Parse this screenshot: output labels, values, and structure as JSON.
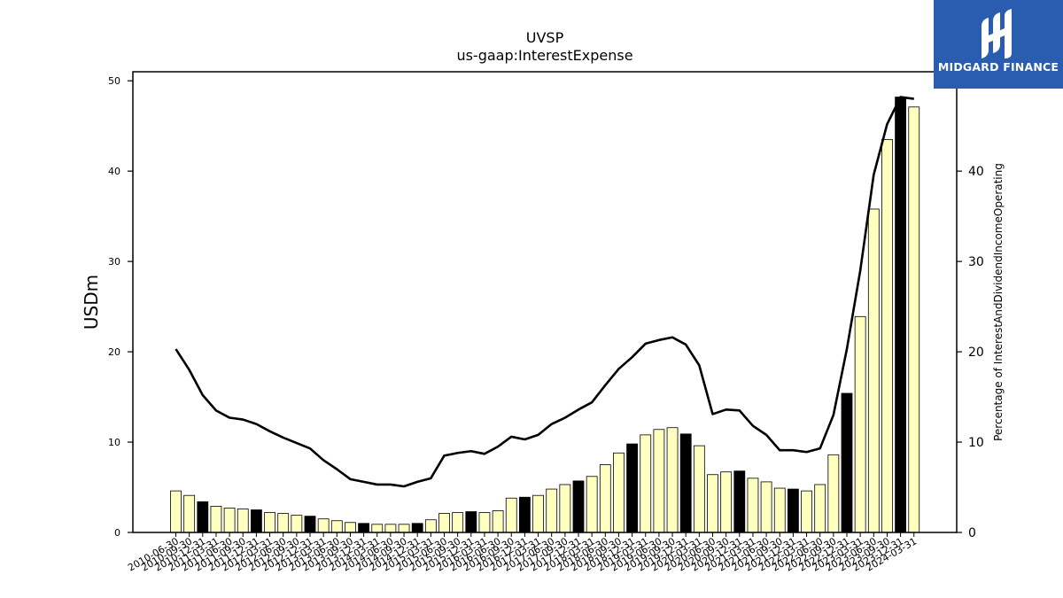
{
  "chart_data": {
    "type": "bar",
    "title": "UVSP",
    "subtitle": "us-gaap:InterestExpense",
    "ylabel": "USDm",
    "ylabel_right": "Percentage of InterestAndDividendIncomeOperating",
    "ylim": [
      0,
      51
    ],
    "ylim_right": [
      0,
      51
    ],
    "yticks": [
      0,
      10,
      20,
      30,
      40,
      50
    ],
    "yticks_right": [
      0,
      10,
      20,
      30,
      40
    ],
    "grid": false,
    "categories": [
      "2010-06-30",
      "2010-09-30",
      "2010-12-31",
      "2011-03-31",
      "2011-06-30",
      "2011-09-30",
      "2011-12-31",
      "2012-03-31",
      "2012-06-30",
      "2012-09-30",
      "2012-12-31",
      "2013-03-31",
      "2013-06-30",
      "2013-09-30",
      "2013-12-31",
      "2014-03-31",
      "2014-06-30",
      "2014-09-30",
      "2014-12-31",
      "2015-03-31",
      "2015-06-30",
      "2015-09-30",
      "2015-12-31",
      "2016-03-31",
      "2016-06-30",
      "2016-09-30",
      "2016-12-31",
      "2017-03-31",
      "2017-06-30",
      "2017-09-30",
      "2017-12-31",
      "2018-03-31",
      "2018-06-30",
      "2018-09-30",
      "2018-12-31",
      "2019-03-31",
      "2019-06-30",
      "2019-09-30",
      "2019-12-31",
      "2020-03-31",
      "2020-06-30",
      "2020-09-30",
      "2020-12-31",
      "2021-03-31",
      "2021-06-30",
      "2021-09-30",
      "2021-12-31",
      "2022-03-31",
      "2022-06-30",
      "2022-09-30",
      "2022-12-31",
      "2023-03-31",
      "2023-06-30",
      "2023-09-30",
      "2023-12-31",
      "2024-03-31"
    ],
    "values": [
      4.6,
      4.1,
      3.4,
      2.9,
      2.7,
      2.6,
      2.5,
      2.2,
      2.1,
      1.9,
      1.8,
      1.5,
      1.3,
      1.1,
      1.0,
      0.9,
      0.9,
      0.9,
      1.0,
      1.4,
      2.1,
      2.2,
      2.3,
      2.2,
      2.4,
      3.8,
      3.9,
      4.1,
      4.8,
      5.3,
      5.7,
      6.2,
      7.5,
      8.8,
      9.8,
      10.8,
      11.4,
      11.6,
      10.9,
      9.6,
      6.4,
      6.7,
      6.8,
      6.0,
      5.6,
      4.9,
      4.8,
      4.6,
      5.3,
      8.6,
      15.4,
      23.9,
      35.8,
      43.5,
      48.2,
      47.1
    ],
    "highlight": [
      false,
      false,
      true,
      false,
      false,
      false,
      true,
      false,
      false,
      false,
      true,
      false,
      false,
      false,
      true,
      false,
      false,
      false,
      true,
      false,
      false,
      false,
      true,
      false,
      false,
      false,
      true,
      false,
      false,
      false,
      true,
      false,
      false,
      false,
      true,
      false,
      false,
      false,
      true,
      false,
      false,
      false,
      true,
      false,
      false,
      false,
      true,
      false,
      false,
      false,
      true,
      false,
      false,
      false,
      true,
      false
    ],
    "line_values": [
      20.3,
      18.0,
      15.2,
      13.5,
      12.7,
      12.5,
      12.0,
      11.2,
      10.5,
      9.9,
      9.3,
      8.0,
      7.0,
      5.9,
      5.6,
      5.3,
      5.3,
      5.1,
      5.6,
      6.0,
      8.5,
      8.8,
      9.0,
      8.7,
      9.5,
      10.6,
      10.3,
      10.8,
      12.0,
      12.7,
      13.6,
      14.4,
      16.3,
      18.1,
      19.4,
      20.9,
      21.3,
      21.6,
      20.8,
      18.5,
      13.1,
      13.6,
      13.5,
      11.8,
      10.8,
      9.1,
      9.1,
      8.9,
      9.3,
      13.0,
      20.3,
      29.0,
      39.6,
      45.2,
      48.2,
      48.0
    ],
    "colors": {
      "bar": "#ffffc0",
      "bar_highlight": "#000000",
      "bar_edge": "#000000",
      "line": "#000000"
    }
  },
  "brand": {
    "name": "MIDGARD FINANCE",
    "color": "#2a5db0"
  }
}
